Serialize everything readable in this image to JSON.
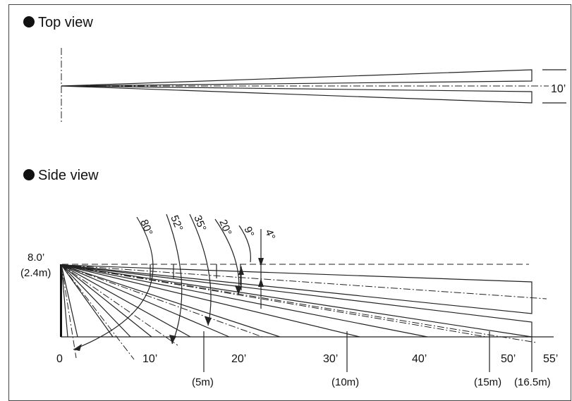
{
  "top_view": {
    "title": "Top view",
    "width_label": "10’"
  },
  "side_view": {
    "title": "Side view",
    "mount_height_ft": "8.0’",
    "mount_height_m": "(2.4m)",
    "angles": [
      "80°",
      "52°",
      "35°",
      "20°",
      "9°",
      "4°"
    ],
    "feet_ticks": [
      "0",
      "10’",
      "20’",
      "30’",
      "40’",
      "50’",
      "55’"
    ],
    "meter_ticks": [
      "(5m)",
      "(10m)",
      "(15m)",
      "(16.5m)"
    ]
  },
  "colors": {
    "line": "#222222",
    "text": "#111111"
  }
}
